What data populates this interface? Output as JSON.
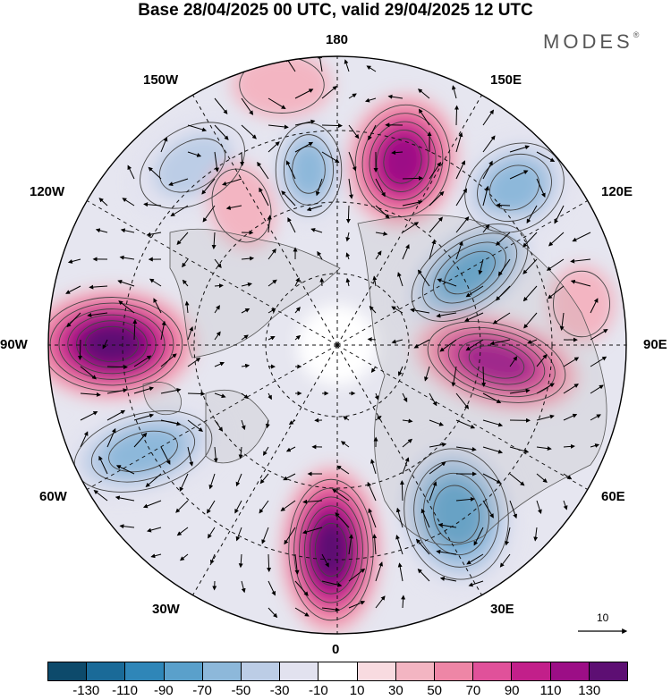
{
  "title": "Base 28/04/2025 00 UTC, valid 29/04/2025 12 UTC",
  "logo": {
    "text": "MODES",
    "mark": "®"
  },
  "longitude_labels": [
    "180",
    "150E",
    "120E",
    "90E",
    "60E",
    "30E",
    "0",
    "30W",
    "60W",
    "90W",
    "120W",
    "150W"
  ],
  "vector_scale_label": "10",
  "colorbar": {
    "colors": [
      "#0d4a6b",
      "#1a6a98",
      "#2f86b8",
      "#5aa0cb",
      "#8db8da",
      "#bccde6",
      "#e2e2ef",
      "#ffffff",
      "#f8dbe0",
      "#f3b5c2",
      "#ee86a6",
      "#e0519a",
      "#c21f8a",
      "#9c0e86",
      "#5d0f73"
    ],
    "tick_labels": [
      "-130",
      "-110",
      "-90",
      "-70",
      "-50",
      "-30",
      "-10",
      "10",
      "30",
      "50",
      "70",
      "90",
      "110",
      "130"
    ]
  },
  "anomaly_centers": [
    {
      "name": "neg-150W",
      "value": -50
    },
    {
      "name": "neg-170W",
      "value": -70
    },
    {
      "name": "pos-165E",
      "value": 110
    },
    {
      "name": "neg-130E",
      "value": -70
    },
    {
      "name": "neg-110E",
      "value": -90
    },
    {
      "name": "pos-80E",
      "value": 110
    },
    {
      "name": "neg-35E",
      "value": -90
    },
    {
      "name": "pos-0",
      "value": 130
    },
    {
      "name": "neg-60W",
      "value": -70
    },
    {
      "name": "pos-90W",
      "value": 130
    },
    {
      "name": "pos-135W",
      "value": 30
    },
    {
      "name": "pos-160W",
      "value": 30
    },
    {
      "name": "pos-100E",
      "value": 30
    }
  ]
}
